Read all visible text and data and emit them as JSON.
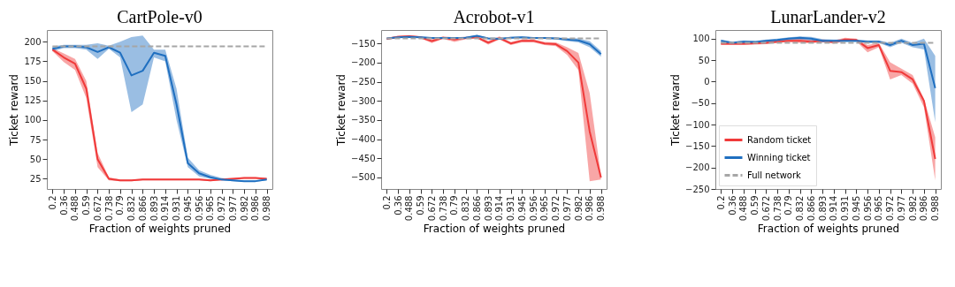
{
  "chart_data": [
    {
      "type": "line",
      "title": "CartPole-v0",
      "xlabel": "Fraction of weights pruned",
      "ylabel": "Ticket reward",
      "categories": [
        "0.2",
        "0.36",
        "0.488",
        "0.59",
        "0.672",
        "0.738",
        "0.79",
        "0.832",
        "0.866",
        "0.893",
        "0.914",
        "0.931",
        "0.945",
        "0.956",
        "0.965",
        "0.972",
        "0.977",
        "0.982",
        "0.986",
        "0.988"
      ],
      "ylim": [
        12,
        215
      ],
      "yticks": [
        25,
        50,
        75,
        100,
        125,
        150,
        175,
        200
      ],
      "grid": false,
      "legend": false,
      "marker": "none",
      "series": [
        {
          "color": "#f03a3a",
          "line_style": "solid",
          "values": [
            190,
            180,
            172,
            140,
            50,
            25,
            23,
            23,
            24,
            24,
            24,
            24,
            24,
            24,
            23,
            24,
            25,
            26,
            26,
            25
          ],
          "lower": [
            188,
            174,
            164,
            128,
            40,
            23,
            22,
            22,
            23,
            23,
            23,
            23,
            23,
            23,
            22,
            23,
            24,
            25,
            25,
            24
          ],
          "upper": [
            192,
            185,
            178,
            150,
            58,
            27,
            24,
            24,
            25,
            25,
            25,
            25,
            25,
            25,
            24,
            25,
            26,
            27,
            27,
            26
          ]
        },
        {
          "color": "#1f6fc0",
          "line_style": "solid",
          "values": [
            191,
            194,
            194,
            193,
            187,
            193,
            186,
            157,
            163,
            186,
            182,
            120,
            45,
            32,
            27,
            24,
            23,
            22,
            22,
            24
          ],
          "lower": [
            188,
            192,
            192,
            190,
            178,
            191,
            180,
            110,
            120,
            180,
            175,
            100,
            40,
            28,
            25,
            23,
            22,
            21,
            21,
            23
          ],
          "upper": [
            194,
            196,
            196,
            196,
            198,
            195,
            200,
            206,
            208,
            190,
            190,
            140,
            52,
            36,
            30,
            26,
            24,
            23,
            23,
            25
          ]
        },
        {
          "color": "#a6a6a6",
          "line_style": "dashed",
          "values": [
            194,
            194,
            194,
            194,
            194,
            194,
            194,
            194,
            194,
            194,
            194,
            194,
            194,
            194,
            194,
            194,
            194,
            194,
            194,
            194
          ]
        }
      ]
    },
    {
      "type": "line",
      "title": "Acrobot-v1",
      "xlabel": "Fraction of weights pruned",
      "ylabel": "Ticket reward",
      "categories": [
        "0.2",
        "0.36",
        "0.488",
        "0.59",
        "0.672",
        "0.738",
        "0.79",
        "0.832",
        "0.866",
        "0.893",
        "0.914",
        "0.931",
        "0.945",
        "0.956",
        "0.965",
        "0.972",
        "0.977",
        "0.982",
        "0.986",
        "0.988"
      ],
      "ylim": [
        -530,
        -115
      ],
      "yticks": [
        -500,
        -450,
        -400,
        -350,
        -300,
        -250,
        -200,
        -150
      ],
      "grid": false,
      "legend": false,
      "marker": "none",
      "series": [
        {
          "color": "#f03a3a",
          "line_style": "solid",
          "values": [
            -138,
            -133,
            -131,
            -134,
            -144,
            -135,
            -140,
            -136,
            -134,
            -148,
            -136,
            -150,
            -143,
            -143,
            -150,
            -152,
            -170,
            -200,
            -380,
            -500
          ],
          "lower": [
            -141,
            -136,
            -134,
            -137,
            -149,
            -138,
            -146,
            -139,
            -137,
            -153,
            -140,
            -154,
            -147,
            -147,
            -154,
            -157,
            -180,
            -220,
            -510,
            -505
          ],
          "upper": [
            -135,
            -130,
            -128,
            -131,
            -139,
            -132,
            -134,
            -133,
            -131,
            -143,
            -132,
            -146,
            -139,
            -139,
            -146,
            -147,
            -160,
            -175,
            -280,
            -495
          ]
        },
        {
          "color": "#1f6fc0",
          "line_style": "solid",
          "values": [
            -137,
            -134,
            -133,
            -134,
            -136,
            -136,
            -136,
            -135,
            -130,
            -137,
            -138,
            -135,
            -134,
            -136,
            -136,
            -137,
            -140,
            -142,
            -152,
            -178
          ],
          "lower": [
            -139,
            -136,
            -135,
            -136,
            -138,
            -138,
            -138,
            -137,
            -132,
            -139,
            -140,
            -137,
            -136,
            -138,
            -138,
            -140,
            -144,
            -147,
            -160,
            -185
          ],
          "upper": [
            -135,
            -132,
            -131,
            -132,
            -134,
            -134,
            -134,
            -133,
            -128,
            -135,
            -136,
            -133,
            -132,
            -134,
            -134,
            -134,
            -136,
            -137,
            -144,
            -170
          ]
        },
        {
          "color": "#a6a6a6",
          "line_style": "dashed",
          "values": [
            -137,
            -137,
            -137,
            -137,
            -137,
            -137,
            -137,
            -137,
            -137,
            -137,
            -137,
            -137,
            -137,
            -137,
            -137,
            -137,
            -137,
            -137,
            -137,
            -137
          ]
        }
      ]
    },
    {
      "type": "line",
      "title": "LunarLander-v2",
      "xlabel": "Fraction of weights pruned",
      "ylabel": "Ticket reward",
      "categories": [
        "0.2",
        "0.36",
        "0.488",
        "0.59",
        "0.672",
        "0.738",
        "0.79",
        "0.832",
        "0.866",
        "0.893",
        "0.914",
        "0.931",
        "0.945",
        "0.956",
        "0.965",
        "0.972",
        "0.977",
        "0.982",
        "0.986",
        "0.988"
      ],
      "ylim": [
        -250,
        120
      ],
      "yticks": [
        -250,
        -200,
        -150,
        -100,
        -50,
        0,
        50,
        100
      ],
      "grid": false,
      "legend": "bottom left",
      "marker": "none",
      "series": [
        {
          "name": "Random ticket",
          "color": "#f03a3a",
          "line_style": "solid",
          "values": [
            88,
            88,
            88,
            89,
            90,
            93,
            95,
            95,
            93,
            95,
            92,
            98,
            97,
            78,
            85,
            25,
            22,
            5,
            -45,
            -180
          ],
          "lower": [
            85,
            85,
            85,
            86,
            87,
            90,
            92,
            90,
            89,
            92,
            88,
            94,
            94,
            68,
            80,
            5,
            15,
            -5,
            -60,
            -230
          ],
          "upper": [
            91,
            91,
            91,
            92,
            93,
            96,
            98,
            100,
            97,
            98,
            96,
            102,
            100,
            85,
            90,
            45,
            30,
            15,
            -40,
            -130
          ]
        },
        {
          "name": "Winning ticket",
          "color": "#1f6fc0",
          "line_style": "solid",
          "values": [
            95,
            90,
            93,
            92,
            95,
            97,
            100,
            102,
            100,
            95,
            95,
            95,
            95,
            93,
            93,
            85,
            95,
            85,
            88,
            -15
          ],
          "lower": [
            90,
            87,
            90,
            89,
            92,
            94,
            97,
            98,
            96,
            91,
            92,
            92,
            92,
            90,
            90,
            80,
            90,
            80,
            75,
            -95
          ],
          "upper": [
            98,
            93,
            96,
            95,
            98,
            100,
            103,
            105,
            104,
            99,
            98,
            98,
            98,
            96,
            96,
            90,
            100,
            90,
            100,
            60
          ]
        },
        {
          "name": "Full network",
          "color": "#a6a6a6",
          "line_style": "dashed",
          "values": [
            90,
            90,
            90,
            90,
            90,
            90,
            90,
            90,
            90,
            90,
            90,
            90,
            90,
            90,
            90,
            90,
            90,
            90,
            90,
            90
          ]
        }
      ]
    }
  ]
}
